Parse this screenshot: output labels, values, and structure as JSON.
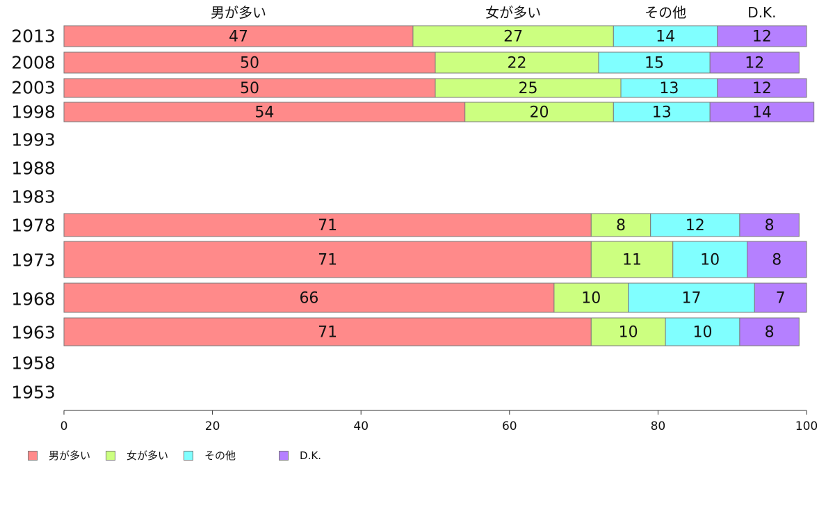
{
  "chart_data": {
    "type": "bar",
    "orientation": "horizontal",
    "stacked": true,
    "title": "",
    "xlabel": "",
    "ylabel": "",
    "xlim": [
      0,
      100
    ],
    "x_ticks": [
      0,
      20,
      40,
      60,
      80,
      100
    ],
    "categories": [
      "2013",
      "2008",
      "2003",
      "1998",
      "1993",
      "1988",
      "1983",
      "1978",
      "1973",
      "1968",
      "1963",
      "1958",
      "1953"
    ],
    "series": [
      {
        "name": "男が多い",
        "color": "#ff8a8a",
        "values": [
          47,
          50,
          50,
          54,
          null,
          null,
          null,
          71,
          71,
          66,
          71,
          null,
          null
        ]
      },
      {
        "name": "女が多い",
        "color": "#ccff80",
        "values": [
          27,
          22,
          25,
          20,
          null,
          null,
          null,
          8,
          11,
          10,
          10,
          null,
          null
        ]
      },
      {
        "name": "その他",
        "color": "#80ffff",
        "values": [
          14,
          15,
          13,
          13,
          null,
          null,
          null,
          12,
          10,
          17,
          10,
          null,
          null
        ]
      },
      {
        "name": "D.K.",
        "color": "#b580ff",
        "values": [
          12,
          12,
          12,
          14,
          null,
          null,
          null,
          8,
          8,
          7,
          8,
          null,
          null
        ]
      }
    ],
    "top_labels": [
      "男が多い",
      "女が多い",
      "その他",
      "D.K."
    ],
    "legend_position": "bottom-left",
    "grid": false
  },
  "legend": {
    "items": [
      {
        "label": "男が多い",
        "color": "#ff8a8a"
      },
      {
        "label": "女が多い",
        "color": "#ccff80"
      },
      {
        "label": "その他",
        "color": "#80ffff"
      },
      {
        "label": "D.K.",
        "color": "#b580ff"
      }
    ]
  }
}
